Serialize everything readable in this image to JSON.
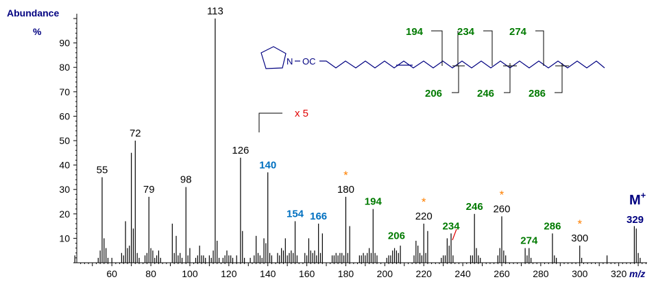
{
  "chart_data": {
    "type": "bar",
    "ylabel": "Abundance",
    "ylabel_unit": "%",
    "xlabel": "m/z",
    "xlim": [
      42,
      335
    ],
    "ylim": [
      0,
      100
    ],
    "x_ticks": [
      60,
      80,
      100,
      120,
      140,
      160,
      180,
      200,
      220,
      240,
      260,
      280,
      300,
      320
    ],
    "y_ticks": [
      10,
      20,
      30,
      40,
      50,
      60,
      70,
      80,
      90
    ],
    "scale_note": "x 5",
    "scale_from_mz": 133,
    "colors": {
      "axis": "#000080",
      "bars": "#000000",
      "black_label": "#000000",
      "blue_label": "#0070c0",
      "green_label": "#007a00",
      "red": "#e00000",
      "star": "#ff8000"
    },
    "peaks": [
      {
        "mz": 41,
        "v": 3
      },
      {
        "mz": 53,
        "v": 2
      },
      {
        "mz": 54,
        "v": 5
      },
      {
        "mz": 55,
        "v": 35
      },
      {
        "mz": 56,
        "v": 10
      },
      {
        "mz": 57,
        "v": 6
      },
      {
        "mz": 58,
        "v": 2
      },
      {
        "mz": 60,
        "v": 2
      },
      {
        "mz": 65,
        "v": 4
      },
      {
        "mz": 66,
        "v": 3
      },
      {
        "mz": 67,
        "v": 17
      },
      {
        "mz": 68,
        "v": 6
      },
      {
        "mz": 69,
        "v": 7
      },
      {
        "mz": 70,
        "v": 45
      },
      {
        "mz": 71,
        "v": 14
      },
      {
        "mz": 72,
        "v": 50
      },
      {
        "mz": 73,
        "v": 4
      },
      {
        "mz": 74,
        "v": 2
      },
      {
        "mz": 77,
        "v": 3
      },
      {
        "mz": 78,
        "v": 4
      },
      {
        "mz": 79,
        "v": 27
      },
      {
        "mz": 80,
        "v": 6
      },
      {
        "mz": 81,
        "v": 5
      },
      {
        "mz": 82,
        "v": 2
      },
      {
        "mz": 83,
        "v": 3
      },
      {
        "mz": 84,
        "v": 5
      },
      {
        "mz": 85,
        "v": 2
      },
      {
        "mz": 91,
        "v": 16
      },
      {
        "mz": 92,
        "v": 4
      },
      {
        "mz": 93,
        "v": 11
      },
      {
        "mz": 94,
        "v": 3
      },
      {
        "mz": 95,
        "v": 4
      },
      {
        "mz": 96,
        "v": 2
      },
      {
        "mz": 98,
        "v": 31
      },
      {
        "mz": 99,
        "v": 3
      },
      {
        "mz": 100,
        "v": 6
      },
      {
        "mz": 103,
        "v": 2
      },
      {
        "mz": 104,
        "v": 3
      },
      {
        "mz": 105,
        "v": 7
      },
      {
        "mz": 106,
        "v": 3
      },
      {
        "mz": 107,
        "v": 3
      },
      {
        "mz": 108,
        "v": 2
      },
      {
        "mz": 110,
        "v": 3
      },
      {
        "mz": 111,
        "v": 2
      },
      {
        "mz": 112,
        "v": 5
      },
      {
        "mz": 113,
        "v": 100
      },
      {
        "mz": 114,
        "v": 9
      },
      {
        "mz": 115,
        "v": 2
      },
      {
        "mz": 117,
        "v": 2
      },
      {
        "mz": 118,
        "v": 3
      },
      {
        "mz": 119,
        "v": 5
      },
      {
        "mz": 120,
        "v": 3
      },
      {
        "mz": 121,
        "v": 3
      },
      {
        "mz": 122,
        "v": 2
      },
      {
        "mz": 124,
        "v": 3
      },
      {
        "mz": 126,
        "v": 43
      },
      {
        "mz": 127,
        "v": 13
      },
      {
        "mz": 128,
        "v": 2
      },
      {
        "mz": 131,
        "v": 2
      },
      {
        "mz": 133,
        "v": 3
      },
      {
        "mz": 134,
        "v": 11
      },
      {
        "mz": 135,
        "v": 4
      },
      {
        "mz": 136,
        "v": 3
      },
      {
        "mz": 137,
        "v": 2
      },
      {
        "mz": 138,
        "v": 10
      },
      {
        "mz": 139,
        "v": 8
      },
      {
        "mz": 140,
        "v": 37
      },
      {
        "mz": 141,
        "v": 4
      },
      {
        "mz": 142,
        "v": 3
      },
      {
        "mz": 145,
        "v": 4
      },
      {
        "mz": 146,
        "v": 3
      },
      {
        "mz": 147,
        "v": 6
      },
      {
        "mz": 148,
        "v": 5
      },
      {
        "mz": 149,
        "v": 10
      },
      {
        "mz": 150,
        "v": 3
      },
      {
        "mz": 151,
        "v": 4
      },
      {
        "mz": 152,
        "v": 5
      },
      {
        "mz": 153,
        "v": 4
      },
      {
        "mz": 154,
        "v": 17
      },
      {
        "mz": 155,
        "v": 3
      },
      {
        "mz": 159,
        "v": 4
      },
      {
        "mz": 160,
        "v": 3
      },
      {
        "mz": 161,
        "v": 10
      },
      {
        "mz": 162,
        "v": 5
      },
      {
        "mz": 163,
        "v": 4
      },
      {
        "mz": 164,
        "v": 5
      },
      {
        "mz": 165,
        "v": 3
      },
      {
        "mz": 166,
        "v": 16
      },
      {
        "mz": 167,
        "v": 4
      },
      {
        "mz": 168,
        "v": 12
      },
      {
        "mz": 173,
        "v": 3
      },
      {
        "mz": 174,
        "v": 3
      },
      {
        "mz": 175,
        "v": 4
      },
      {
        "mz": 176,
        "v": 3
      },
      {
        "mz": 177,
        "v": 4
      },
      {
        "mz": 178,
        "v": 4
      },
      {
        "mz": 179,
        "v": 3
      },
      {
        "mz": 180,
        "v": 27
      },
      {
        "mz": 181,
        "v": 4
      },
      {
        "mz": 182,
        "v": 15
      },
      {
        "mz": 187,
        "v": 3
      },
      {
        "mz": 188,
        "v": 3
      },
      {
        "mz": 189,
        "v": 4
      },
      {
        "mz": 190,
        "v": 3
      },
      {
        "mz": 191,
        "v": 4
      },
      {
        "mz": 192,
        "v": 6
      },
      {
        "mz": 193,
        "v": 4
      },
      {
        "mz": 194,
        "v": 22
      },
      {
        "mz": 195,
        "v": 4
      },
      {
        "mz": 196,
        "v": 3
      },
      {
        "mz": 201,
        "v": 2
      },
      {
        "mz": 202,
        "v": 3
      },
      {
        "mz": 203,
        "v": 3
      },
      {
        "mz": 204,
        "v": 5
      },
      {
        "mz": 205,
        "v": 6
      },
      {
        "mz": 206,
        "v": 5
      },
      {
        "mz": 207,
        "v": 4
      },
      {
        "mz": 208,
        "v": 7
      },
      {
        "mz": 215,
        "v": 3
      },
      {
        "mz": 216,
        "v": 9
      },
      {
        "mz": 217,
        "v": 7
      },
      {
        "mz": 218,
        "v": 4
      },
      {
        "mz": 219,
        "v": 3
      },
      {
        "mz": 220,
        "v": 16
      },
      {
        "mz": 221,
        "v": 4
      },
      {
        "mz": 222,
        "v": 13
      },
      {
        "mz": 229,
        "v": 2
      },
      {
        "mz": 230,
        "v": 3
      },
      {
        "mz": 231,
        "v": 3
      },
      {
        "mz": 232,
        "v": 10
      },
      {
        "mz": 233,
        "v": 7
      },
      {
        "mz": 234,
        "v": 12
      },
      {
        "mz": 235,
        "v": 3
      },
      {
        "mz": 244,
        "v": 3
      },
      {
        "mz": 245,
        "v": 3
      },
      {
        "mz": 246,
        "v": 20
      },
      {
        "mz": 247,
        "v": 6
      },
      {
        "mz": 248,
        "v": 3
      },
      {
        "mz": 249,
        "v": 2
      },
      {
        "mz": 258,
        "v": 3
      },
      {
        "mz": 259,
        "v": 6
      },
      {
        "mz": 260,
        "v": 19
      },
      {
        "mz": 261,
        "v": 5
      },
      {
        "mz": 262,
        "v": 3
      },
      {
        "mz": 272,
        "v": 6
      },
      {
        "mz": 273,
        "v": 3
      },
      {
        "mz": 274,
        "v": 6
      },
      {
        "mz": 275,
        "v": 2
      },
      {
        "mz": 286,
        "v": 12
      },
      {
        "mz": 287,
        "v": 3
      },
      {
        "mz": 288,
        "v": 2
      },
      {
        "mz": 300,
        "v": 7
      },
      {
        "mz": 301,
        "v": 2
      },
      {
        "mz": 314,
        "v": 3
      },
      {
        "mz": 328,
        "v": 15
      },
      {
        "mz": 329,
        "v": 14
      },
      {
        "mz": 330,
        "v": 4
      },
      {
        "mz": 331,
        "v": 2
      }
    ],
    "peak_labels": [
      {
        "text": "55",
        "mz": 55,
        "v": 35,
        "color": "black",
        "bold": false
      },
      {
        "text": "72",
        "mz": 72,
        "v": 50,
        "color": "black",
        "bold": false
      },
      {
        "text": "79",
        "mz": 79,
        "v": 27,
        "color": "black",
        "bold": false
      },
      {
        "text": "98",
        "mz": 98,
        "v": 31,
        "color": "black",
        "bold": false
      },
      {
        "text": "113",
        "mz": 113,
        "v": 100,
        "color": "black",
        "bold": false
      },
      {
        "text": "126",
        "mz": 126,
        "v": 43,
        "color": "black",
        "bold": false
      },
      {
        "text": "140",
        "mz": 140,
        "v": 37,
        "color": "blue",
        "bold": true
      },
      {
        "text": "154",
        "mz": 154,
        "v": 17,
        "color": "blue",
        "bold": true
      },
      {
        "text": "166",
        "mz": 166,
        "v": 16,
        "color": "blue",
        "bold": true
      },
      {
        "text": "180",
        "mz": 180,
        "v": 27,
        "color": "black",
        "bold": false
      },
      {
        "text": "194",
        "mz": 194,
        "v": 22,
        "color": "green",
        "bold": true
      },
      {
        "text": "206",
        "mz": 206,
        "v": 8,
        "color": "green",
        "bold": true
      },
      {
        "text": "220",
        "mz": 220,
        "v": 16,
        "color": "black",
        "bold": false
      },
      {
        "text": "234",
        "mz": 234,
        "v": 12,
        "color": "green",
        "bold": true
      },
      {
        "text": "246",
        "mz": 246,
        "v": 20,
        "color": "green",
        "bold": true
      },
      {
        "text": "260",
        "mz": 260,
        "v": 19,
        "color": "black",
        "bold": false
      },
      {
        "text": "274",
        "mz": 274,
        "v": 6,
        "color": "green",
        "bold": true
      },
      {
        "text": "286",
        "mz": 286,
        "v": 12,
        "color": "green",
        "bold": true
      },
      {
        "text": "300",
        "mz": 300,
        "v": 7,
        "color": "black",
        "bold": false
      }
    ],
    "star_marks": [
      180,
      220,
      260,
      300
    ],
    "molecular_ion": {
      "label": "M",
      "superscript": "+",
      "mz_text": "329"
    }
  },
  "structure": {
    "n_label": "N",
    "oc_label": "OC",
    "upper_fragments": [
      "194",
      "234",
      "274"
    ],
    "lower_fragments": [
      "206",
      "246",
      "286"
    ]
  }
}
